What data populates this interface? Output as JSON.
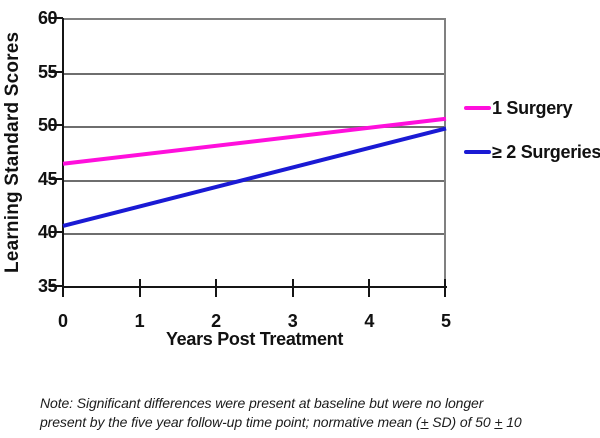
{
  "chart_data": {
    "type": "line",
    "title": "",
    "xlabel": "Years Post Treatment",
    "ylabel": "Learning Standard Scores",
    "x": [
      0,
      5
    ],
    "series": [
      {
        "name": "1 Surgery",
        "color": "#FF0FDC",
        "values": [
          46.4,
          50.6
        ]
      },
      {
        "name": "≥ 2 Surgeries",
        "color": "#1A1AD4",
        "values": [
          40.6,
          49.7
        ]
      }
    ],
    "xlim": [
      0,
      5
    ],
    "ylim": [
      35,
      60
    ],
    "xtick_labels": [
      "0",
      "1",
      "2",
      "3",
      "4",
      "5"
    ],
    "ytick_labels": [
      "60",
      "55",
      "50",
      "45",
      "40",
      "35"
    ],
    "grid": "horizontal",
    "legend_position": "right",
    "line_width": 4
  },
  "note": {
    "line1": "Note: Significant differences were present at baseline but were no longer",
    "line2_pre": "present by the five year follow-up time point; normative mean (",
    "pm1": "+",
    "line2_mid": " SD) of 50 ",
    "pm2": "+",
    "line2_post": " 10"
  },
  "colors": {
    "series1": "#FF0FDC",
    "series2": "#1A1AD4",
    "gridline": "#6e6e6e",
    "frame": "#808080",
    "axis": "#151515"
  }
}
